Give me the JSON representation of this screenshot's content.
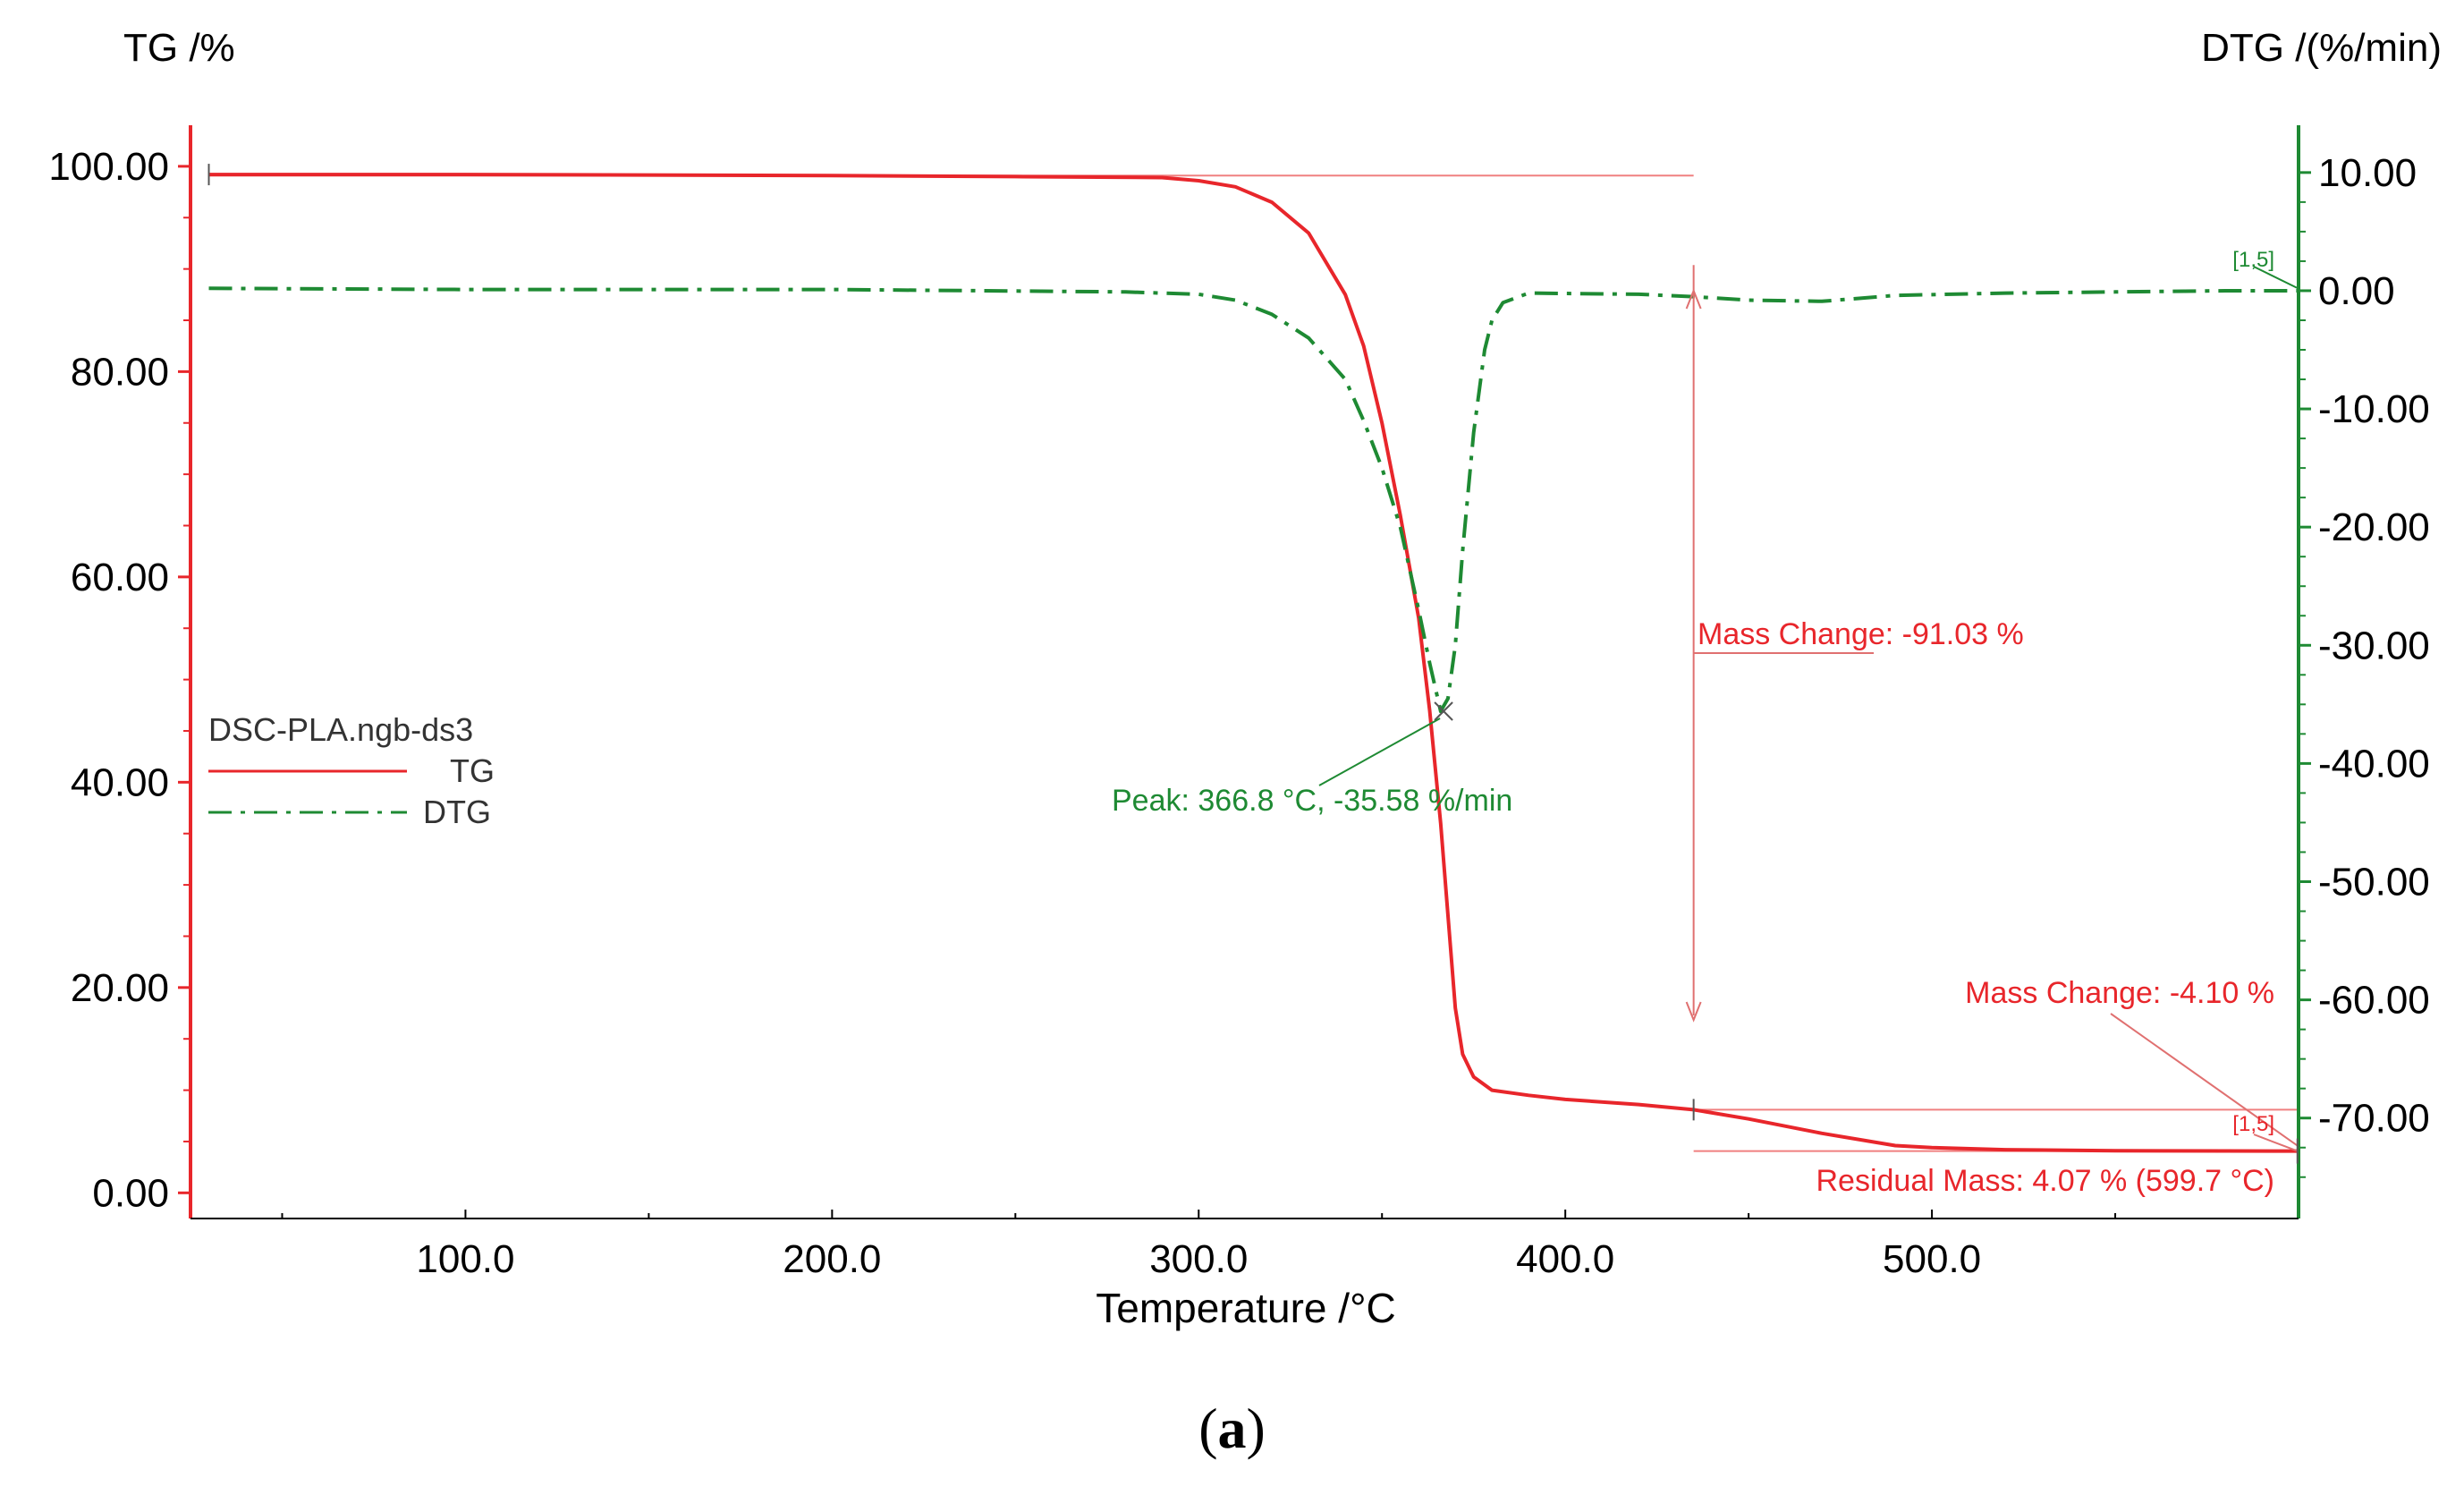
{
  "chart_data": {
    "type": "line",
    "xlabel": "Temperature /°C",
    "xlim": [
      25,
      600
    ],
    "x_ticks": [
      "100.0",
      "200.0",
      "300.0",
      "400.0",
      "500.0"
    ],
    "x_tick_values": [
      100,
      200,
      300,
      400,
      500
    ],
    "left_axis": {
      "label": "TG /%",
      "ylim": [
        -2.5,
        104
      ],
      "ticks": [
        "0.00",
        "20.00",
        "40.00",
        "60.00",
        "80.00",
        "100.00"
      ],
      "tick_values": [
        0,
        20,
        40,
        60,
        80,
        100
      ],
      "color": "#e8262b"
    },
    "right_axis": {
      "label": "DTG /(%/min)",
      "ylim": [
        -78.5,
        14
      ],
      "ticks": [
        "10.00",
        "0.00",
        "-10.00",
        "-20.00",
        "-30.00",
        "-40.00",
        "-50.00",
        "-60.00",
        "-70.00"
      ],
      "tick_values": [
        10,
        0,
        -10,
        -20,
        -30,
        -40,
        -50,
        -60,
        -70
      ],
      "color": "#1e8a33"
    },
    "series": [
      {
        "name": "TG",
        "axis": "left",
        "style": "solid",
        "color": "#e8262b",
        "x": [
          30,
          100,
          200,
          250,
          290,
          300,
          310,
          320,
          330,
          340,
          345,
          350,
          355,
          360,
          363,
          366,
          368,
          370,
          372,
          375,
          380,
          390,
          400,
          420,
          435,
          450,
          470,
          490,
          500,
          520,
          550,
          580,
          599.7
        ],
        "y": [
          99.2,
          99.2,
          99.1,
          99.0,
          98.9,
          98.6,
          98.0,
          96.5,
          93.5,
          87.5,
          82.5,
          75.0,
          66.0,
          56.0,
          47.0,
          36.0,
          27.0,
          18.0,
          13.5,
          11.3,
          10.0,
          9.5,
          9.1,
          8.6,
          8.1,
          7.2,
          5.8,
          4.6,
          4.4,
          4.2,
          4.1,
          4.08,
          4.07
        ]
      },
      {
        "name": "DTG",
        "axis": "right",
        "style": "dashdot",
        "color": "#1e8a33",
        "x": [
          30,
          100,
          200,
          280,
          300,
          310,
          320,
          330,
          340,
          345,
          350,
          355,
          360,
          363,
          366,
          368,
          370,
          372,
          375,
          378,
          380,
          383,
          390,
          420,
          435,
          450,
          470,
          490,
          520,
          550,
          580,
          599.7
        ],
        "y": [
          0.2,
          0.1,
          0.1,
          -0.1,
          -0.3,
          -0.8,
          -2.0,
          -4.0,
          -7.5,
          -11.0,
          -15.0,
          -20.0,
          -27.0,
          -31.5,
          -35.58,
          -34.5,
          -30.0,
          -22.0,
          -12.0,
          -5.0,
          -2.5,
          -1.0,
          -0.2,
          -0.3,
          -0.5,
          -0.8,
          -0.9,
          -0.4,
          -0.2,
          -0.1,
          0.0,
          0.0
        ]
      }
    ],
    "legend": {
      "title": "DSC-PLA.ngb-ds3",
      "entries": [
        "TG",
        "DTG"
      ],
      "placement": "middle-left"
    },
    "annotations": {
      "peak_label": "Peak: 366.8 °C, -35.58 %/min",
      "peak_x": 366.8,
      "peak_y": -35.58,
      "mass_change_1": "Mass Change: -91.03 %",
      "mass_change_1_x": 435,
      "mass_change_1_from": 99.1,
      "mass_change_1_to": 8.1,
      "mass_change_2": "Mass Change: -4.10 %",
      "residual_mass": "Residual Mass: 4.07 % (599.7 °C)",
      "end_marker_tg": "[1,5]",
      "end_marker_dtg": "[1,5]",
      "onset_x": 30,
      "onset_y": 99.2,
      "end_x": 599.7,
      "end_y": 4.07
    }
  },
  "figure_label": "a"
}
